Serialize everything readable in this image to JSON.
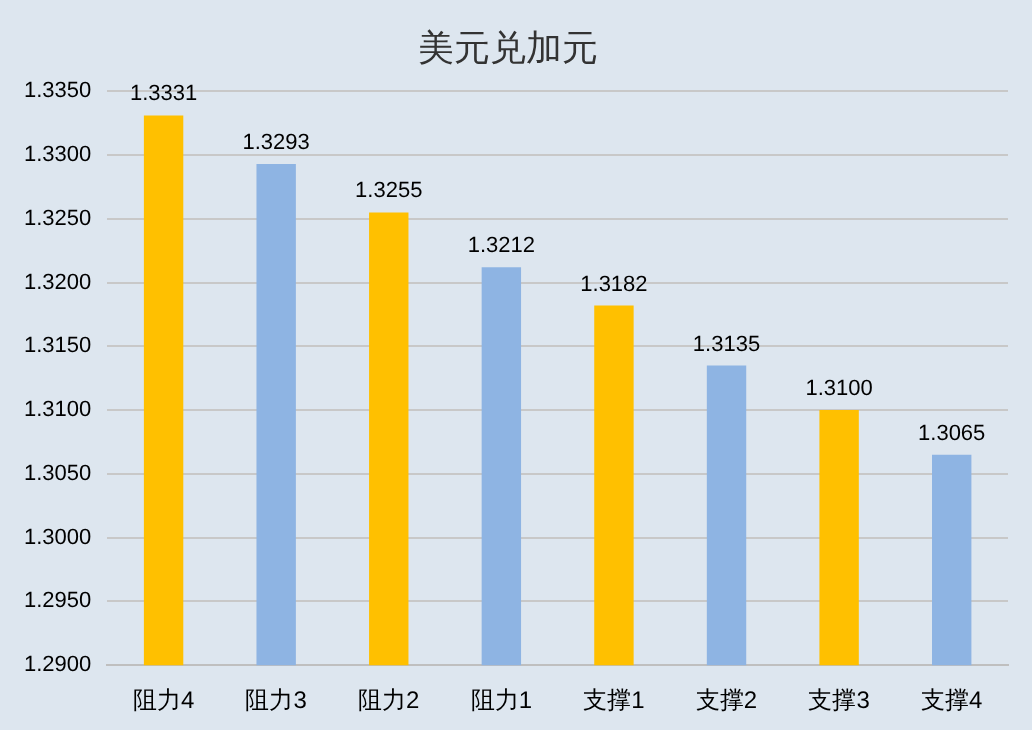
{
  "chart_data": {
    "type": "bar",
    "title": "美元兑加元",
    "categories": [
      "阻力4",
      "阻力3",
      "阻力2",
      "阻力1",
      "支撑1",
      "支撑2",
      "支撑3",
      "支撑4"
    ],
    "values": [
      1.3331,
      1.3293,
      1.3255,
      1.3212,
      1.3182,
      1.3135,
      1.31,
      1.3065
    ],
    "colors": [
      "#ffc000",
      "#8eb4e3",
      "#ffc000",
      "#8eb4e3",
      "#ffc000",
      "#8eb4e3",
      "#ffc000",
      "#8eb4e3"
    ],
    "value_labels": [
      "1.3331",
      "1.3293",
      "1.3255",
      "1.3212",
      "1.3182",
      "1.3135",
      "1.3100",
      "1.3065"
    ],
    "ylim": [
      1.29,
      1.335
    ],
    "yticks": [
      {
        "value": 1.29,
        "label": "1.2900"
      },
      {
        "value": 1.295,
        "label": "1.2950"
      },
      {
        "value": 1.3,
        "label": "1.3000"
      },
      {
        "value": 1.305,
        "label": "1.3050"
      },
      {
        "value": 1.31,
        "label": "1.3100"
      },
      {
        "value": 1.315,
        "label": "1.3150"
      },
      {
        "value": 1.32,
        "label": "1.3200"
      },
      {
        "value": 1.325,
        "label": "1.3250"
      },
      {
        "value": 1.33,
        "label": "1.3300"
      },
      {
        "value": 1.335,
        "label": "1.3350"
      }
    ],
    "grid": "y",
    "legend": false
  }
}
